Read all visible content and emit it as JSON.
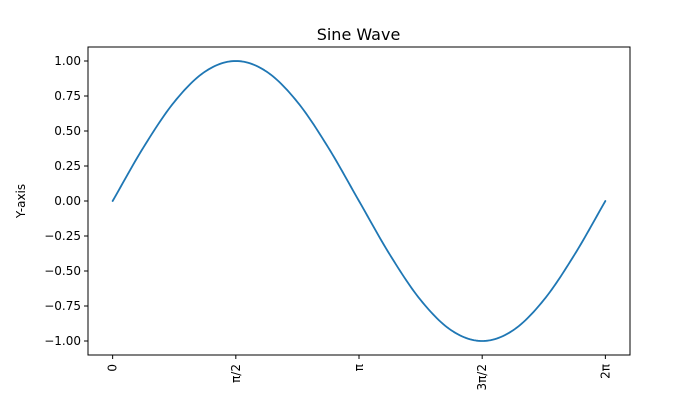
{
  "chart_data": {
    "type": "line",
    "title": "Sine Wave",
    "xlabel": "",
    "ylabel": "Y-axis",
    "xlim": [
      -0.3142,
      6.5973
    ],
    "ylim": [
      -1.1,
      1.1
    ],
    "grid": false,
    "x_ticks": [
      {
        "value": 0,
        "label": "0"
      },
      {
        "value": 1.5708,
        "label": "π/2"
      },
      {
        "value": 3.1416,
        "label": "π"
      },
      {
        "value": 4.7124,
        "label": "3π/2"
      },
      {
        "value": 6.2832,
        "label": "2π"
      }
    ],
    "x_tick_rotation": -90,
    "y_ticks": [
      {
        "value": 1.0,
        "label": "1.00"
      },
      {
        "value": 0.75,
        "label": "0.75"
      },
      {
        "value": 0.5,
        "label": "0.50"
      },
      {
        "value": 0.25,
        "label": "0.25"
      },
      {
        "value": 0.0,
        "label": "0.00"
      },
      {
        "value": -0.25,
        "label": "−0.25"
      },
      {
        "value": -0.5,
        "label": "−0.50"
      },
      {
        "value": -0.75,
        "label": "−0.75"
      },
      {
        "value": -1.0,
        "label": "−1.00"
      }
    ],
    "series": [
      {
        "color": "#1f77b4",
        "x": [
          0,
          0.3927,
          0.7854,
          1.1781,
          1.5708,
          1.9635,
          2.3562,
          2.7489,
          3.1416,
          3.5343,
          3.927,
          4.3197,
          4.7124,
          5.1051,
          5.4978,
          5.8905,
          6.2832
        ],
        "y": [
          0,
          0.3827,
          0.7071,
          0.9239,
          1.0,
          0.9239,
          0.7071,
          0.3827,
          0,
          -0.3827,
          -0.7071,
          -0.9239,
          -1.0,
          -0.9239,
          -0.7071,
          -0.3827,
          0
        ]
      }
    ]
  }
}
